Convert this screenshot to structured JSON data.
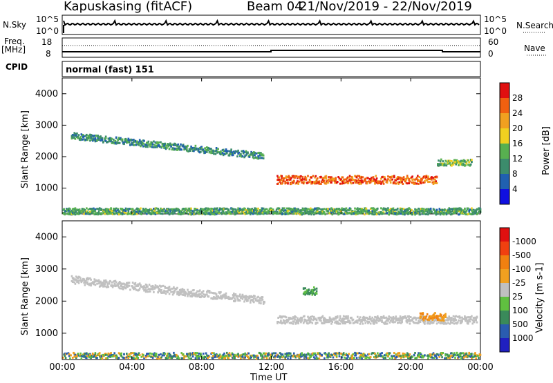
{
  "header": {
    "site": "Kapuskasing (fitACF)",
    "beam": "Beam 04",
    "dates": "21/Nov/2019 - 22/Nov/2019"
  },
  "top_panel": {
    "left_label": "N.Sky",
    "left_tick_top": "10^5",
    "left_tick_bottom": "10^0",
    "right_tick_top": "10^5",
    "right_tick_bottom": "10^0",
    "right_label": "N.Search"
  },
  "freq_panel": {
    "left_label_1": "Freq.",
    "left_label_2": "[MHz]",
    "left_tick_top": "18",
    "left_tick_bottom": "8",
    "right_tick_top": "60",
    "right_tick_bottom": "0",
    "right_label": "Nave"
  },
  "cpid_panel": {
    "left_label": "CPID",
    "mode_text": "normal (fast) 151"
  },
  "colors": {
    "frame": "#000000",
    "ground_scatter_grey": "#c0c0c0"
  },
  "chart_data": [
    {
      "type": "heatmap",
      "panel": "power",
      "ylabel": "Slant Range [km]",
      "xlabel": "",
      "x_ticks": [
        "00:00",
        "04:00",
        "08:00",
        "12:00",
        "16:00",
        "20:00",
        "00:00"
      ],
      "y_ticks": [
        1000,
        2000,
        3000,
        4000
      ],
      "ylim": [
        180,
        4500
      ],
      "xlim_hours": [
        0,
        24
      ],
      "colorbar": {
        "label": "Power [dB]",
        "ticks": [
          "4",
          "8",
          "12",
          "16",
          "20",
          "24",
          "28"
        ],
        "colors": [
          "#1010e0",
          "#2060b0",
          "#3c8c6c",
          "#58b050",
          "#f0d020",
          "#f0a020",
          "#f06010",
          "#e01010"
        ]
      },
      "features": [
        {
          "name": "far echo band",
          "t_start": 0.5,
          "t_end": 11.6,
          "range_start": 2650,
          "range_end": 2000,
          "power_db": 10
        },
        {
          "name": "main echo band",
          "t_start": 12.3,
          "t_end": 21.5,
          "range_center": 1250,
          "power_db": 26
        },
        {
          "name": "late echo",
          "t_start": 21.5,
          "t_end": 23.5,
          "range_center": 1800,
          "power_db": 14
        },
        {
          "name": "near-range clutter",
          "t_start": 0,
          "t_end": 24,
          "range_center": 250,
          "power_db": 12
        }
      ]
    },
    {
      "type": "heatmap",
      "panel": "velocity",
      "ylabel": "Slant Range [km]",
      "xlabel": "Time UT",
      "x_ticks": [
        "00:00",
        "04:00",
        "08:00",
        "12:00",
        "16:00",
        "20:00",
        "00:00"
      ],
      "y_ticks": [
        1000,
        2000,
        3000,
        4000
      ],
      "ylim": [
        180,
        4500
      ],
      "xlim_hours": [
        0,
        24
      ],
      "colorbar": {
        "label": "Velocity [m s-1]",
        "ticks": [
          "1000",
          "500",
          "100",
          "25",
          "-25",
          "-100",
          "-500",
          "-1000"
        ],
        "colors": [
          "#2020c0",
          "#2a5cb0",
          "#3a8a5a",
          "#60c040",
          "#c0c0c0",
          "#f0a020",
          "#f08010",
          "#f04010",
          "#e01010"
        ]
      },
      "features": [
        {
          "name": "ground scatter far",
          "t_start": 0.5,
          "t_end": 11.6,
          "range_start": 2650,
          "range_end": 2000,
          "velocity": 0
        },
        {
          "name": "ground scatter main",
          "t_start": 12.3,
          "t_end": 23.8,
          "range_center": 1400,
          "velocity": 0
        },
        {
          "name": "ionospheric patch",
          "t_start": 13.8,
          "t_end": 14.6,
          "range_center": 2300,
          "velocity": 150
        },
        {
          "name": "ionospheric receding",
          "t_start": 20.5,
          "t_end": 22.0,
          "range_center": 1500,
          "velocity": -300
        }
      ]
    }
  ]
}
